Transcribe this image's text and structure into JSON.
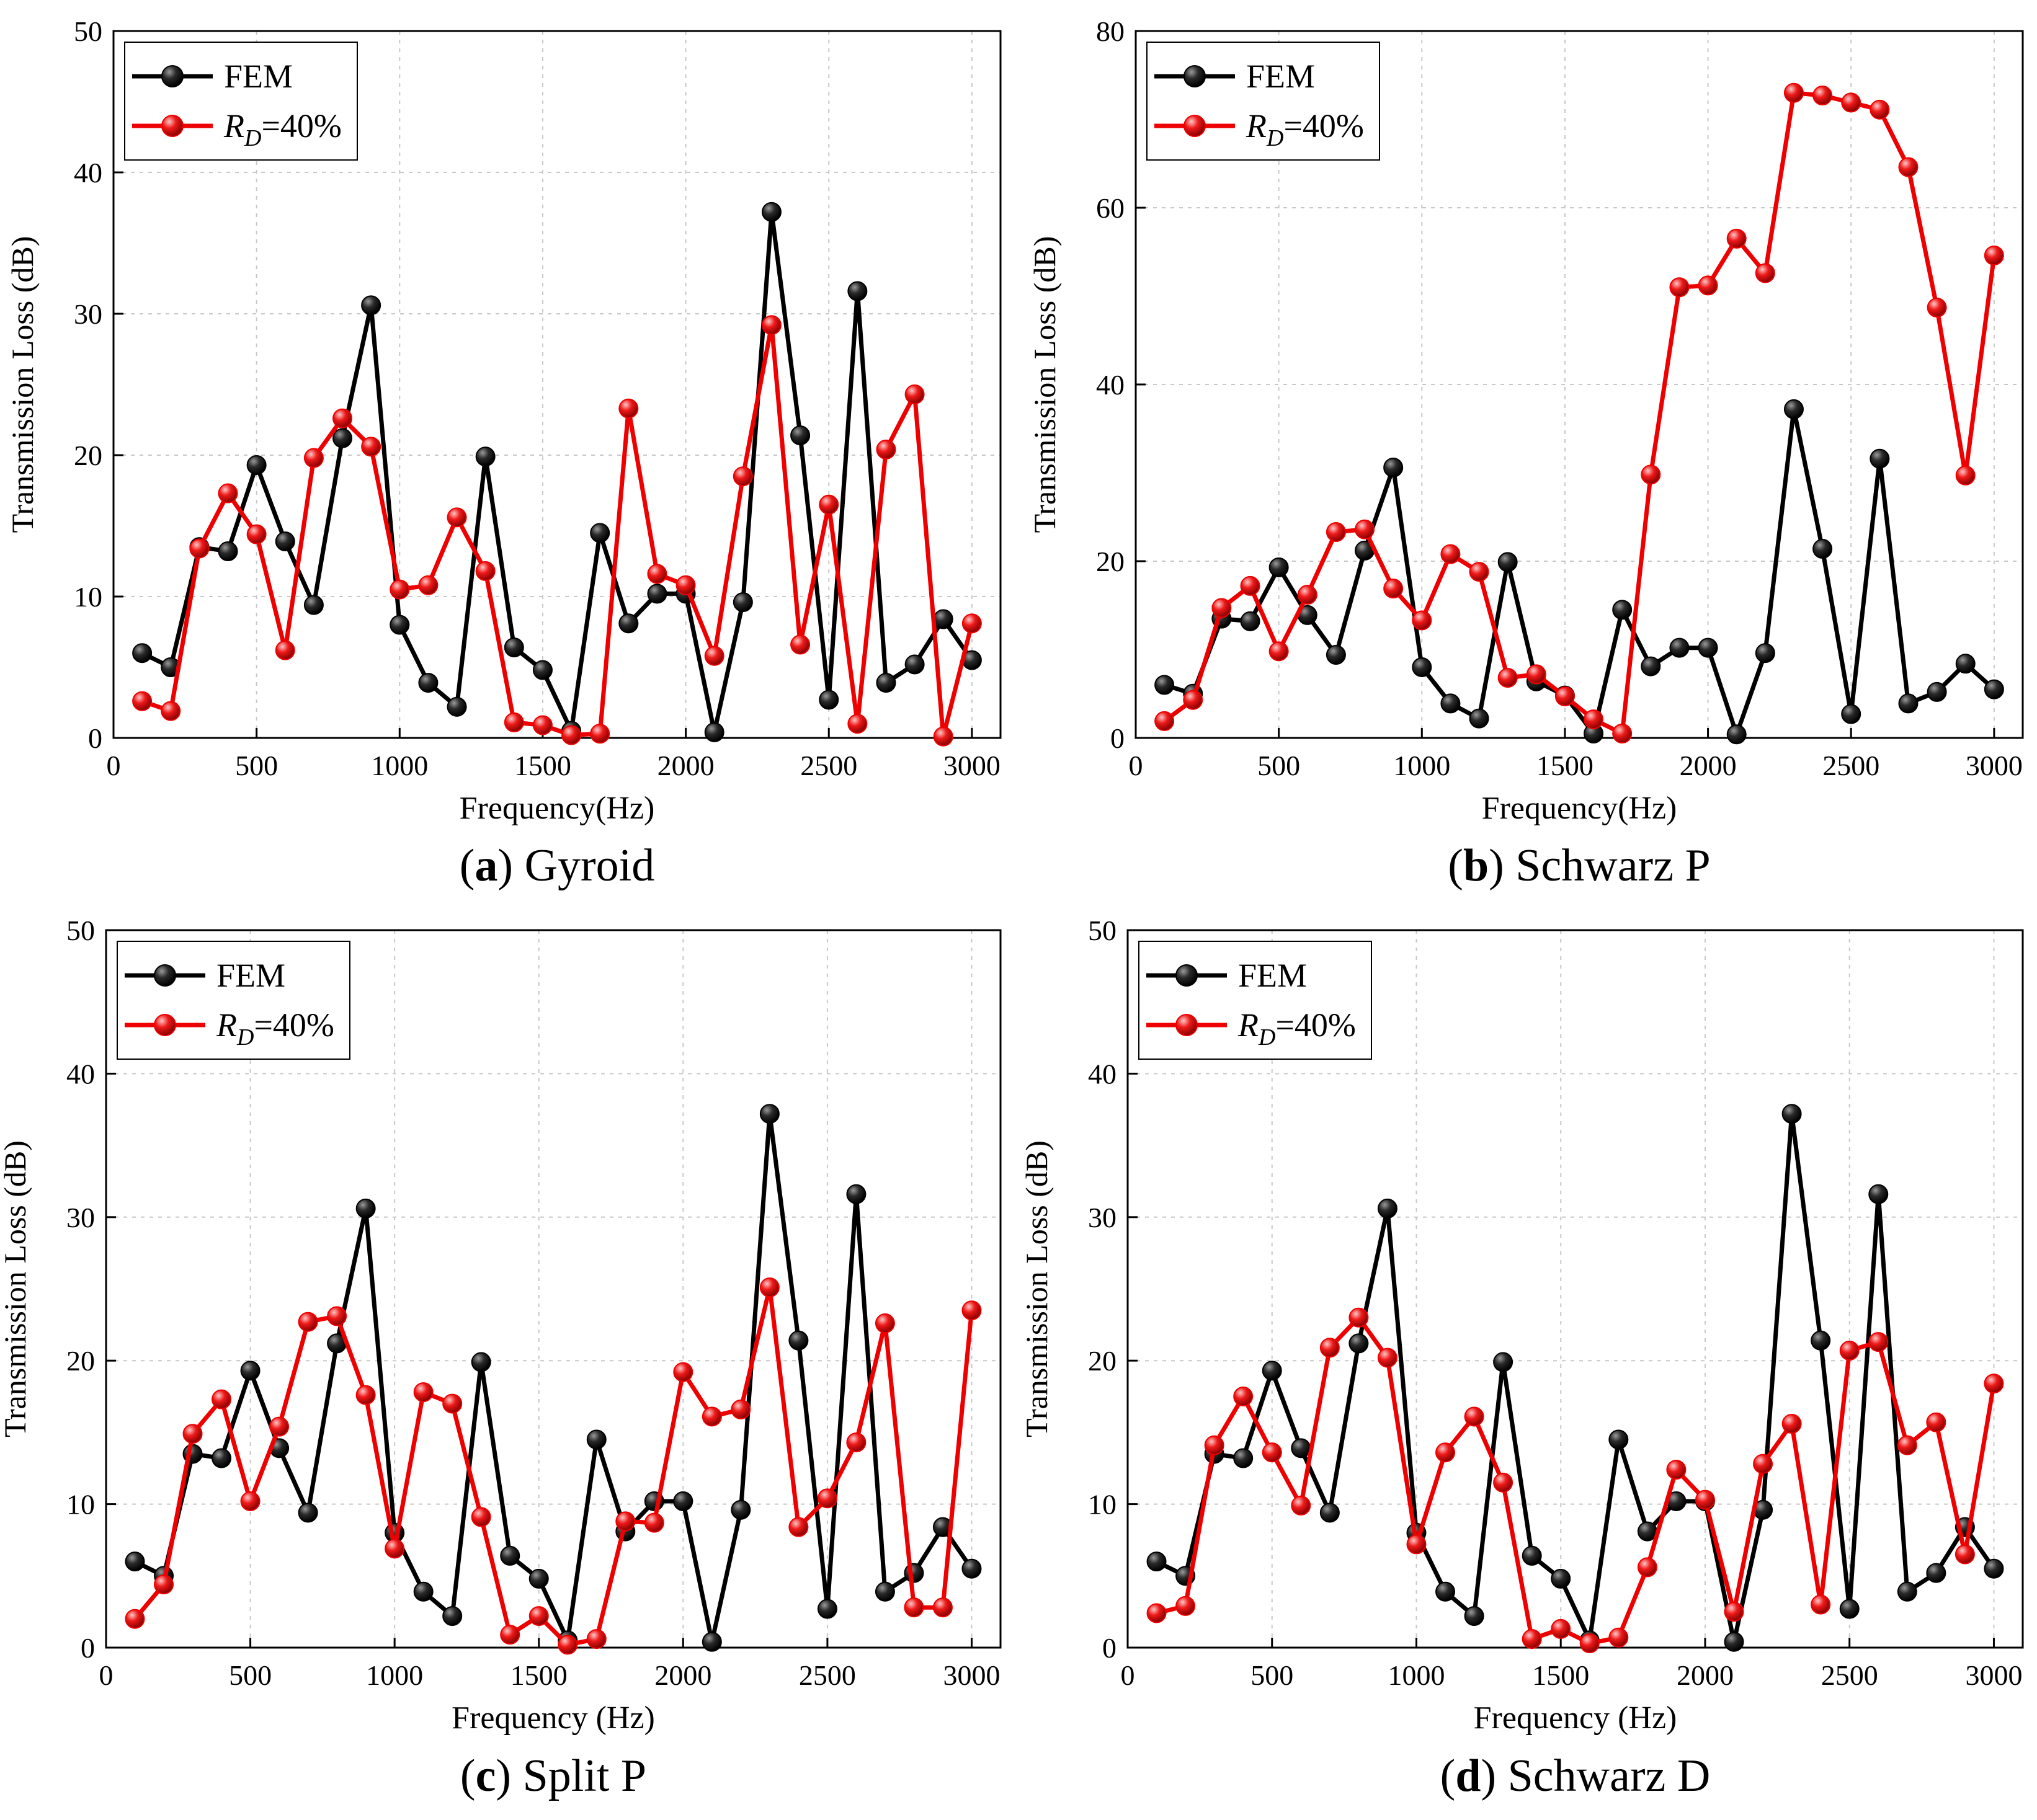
{
  "colors": {
    "fem": "#000000",
    "rd": "#ee0000",
    "grid": "#c8c8c8",
    "axis": "#000000"
  },
  "chart_data": [
    {
      "type": "line",
      "caption": {
        "letter": "a",
        "name": "Gyroid"
      },
      "xlabel": "Frequency(Hz)",
      "ylabel": "Transmission Loss (dB)",
      "xlim": [
        0,
        3100
      ],
      "ylim": [
        0,
        50
      ],
      "xticks": [
        0,
        500,
        1000,
        1500,
        2000,
        2500,
        3000
      ],
      "yticks": [
        0,
        10,
        20,
        30,
        40,
        50
      ],
      "grid": true,
      "legend_position": "top-left",
      "x": [
        100,
        200,
        300,
        400,
        500,
        600,
        700,
        800,
        900,
        1000,
        1100,
        1200,
        1300,
        1400,
        1500,
        1600,
        1700,
        1800,
        1900,
        2000,
        2100,
        2200,
        2300,
        2400,
        2500,
        2600,
        2700,
        2800,
        2900,
        3000
      ],
      "series": [
        {
          "name": "FEM",
          "values": [
            6,
            5,
            13.5,
            13.2,
            19.3,
            13.9,
            9.4,
            21.2,
            30.6,
            8,
            3.9,
            2.2,
            19.9,
            6.4,
            4.8,
            0.5,
            14.5,
            8.1,
            10.2,
            10.2,
            0.4,
            9.6,
            37.2,
            21.4,
            2.7,
            31.6,
            3.9,
            5.2,
            8.4,
            5.5
          ]
        },
        {
          "name_main": "R",
          "name_sub": "D",
          "name_suffix": "=40%",
          "values": [
            2.6,
            1.9,
            13.4,
            17.3,
            14.4,
            6.2,
            19.8,
            22.6,
            20.6,
            10.5,
            10.8,
            15.6,
            11.8,
            1.1,
            0.9,
            0.2,
            0.3,
            23.3,
            11.6,
            10.8,
            5.8,
            18.5,
            29.2,
            6.6,
            16.5,
            1,
            20.4,
            24.3,
            0.1,
            8.1
          ]
        }
      ]
    },
    {
      "type": "line",
      "caption": {
        "letter": "b",
        "name": "Schwarz P"
      },
      "xlabel": "Frequency(Hz)",
      "ylabel": "Transmission Loss (dB)",
      "xlim": [
        0,
        3100
      ],
      "ylim": [
        0,
        80
      ],
      "xticks": [
        0,
        500,
        1000,
        1500,
        2000,
        2500,
        3000
      ],
      "yticks": [
        0,
        20,
        40,
        60,
        80
      ],
      "grid": true,
      "legend_position": "top-left",
      "x": [
        100,
        200,
        300,
        400,
        500,
        600,
        700,
        800,
        900,
        1000,
        1100,
        1200,
        1300,
        1400,
        1500,
        1600,
        1700,
        1800,
        1900,
        2000,
        2100,
        2200,
        2300,
        2400,
        2500,
        2600,
        2700,
        2800,
        2900,
        3000
      ],
      "series": [
        {
          "name": "FEM",
          "values": [
            6,
            5,
            13.5,
            13.2,
            19.3,
            13.9,
            9.4,
            21.2,
            30.6,
            8,
            3.9,
            2.2,
            19.9,
            6.4,
            4.8,
            0.5,
            14.5,
            8.1,
            10.2,
            10.2,
            0.4,
            9.6,
            37.2,
            21.4,
            2.7,
            31.6,
            3.9,
            5.2,
            8.4,
            5.5
          ]
        },
        {
          "name_main": "R",
          "name_sub": "D",
          "name_suffix": "=40%",
          "values": [
            1.9,
            4.3,
            14.7,
            17.2,
            9.8,
            16.2,
            23.3,
            23.6,
            16.9,
            13.3,
            20.8,
            18.8,
            6.8,
            7.2,
            4.7,
            2.1,
            0.5,
            29.8,
            51,
            51.2,
            56.5,
            52.6,
            73,
            72.7,
            71.9,
            71.1,
            64.6,
            48.7,
            29.7,
            54.6
          ]
        }
      ]
    },
    {
      "type": "line",
      "caption": {
        "letter": "c",
        "name": "Split P"
      },
      "xlabel": "Frequency (Hz)",
      "ylabel": "Transmission Loss (dB)",
      "xlim": [
        0,
        3100
      ],
      "ylim": [
        0,
        50
      ],
      "xticks": [
        0,
        500,
        1000,
        1500,
        2000,
        2500,
        3000
      ],
      "yticks": [
        0,
        10,
        20,
        30,
        40,
        50
      ],
      "grid": true,
      "legend_position": "top-left",
      "x": [
        100,
        200,
        300,
        400,
        500,
        600,
        700,
        800,
        900,
        1000,
        1100,
        1200,
        1300,
        1400,
        1500,
        1600,
        1700,
        1800,
        1900,
        2000,
        2100,
        2200,
        2300,
        2400,
        2500,
        2600,
        2700,
        2800,
        2900,
        3000
      ],
      "series": [
        {
          "name": "FEM",
          "values": [
            6,
            5,
            13.5,
            13.2,
            19.3,
            13.9,
            9.4,
            21.2,
            30.6,
            8,
            3.9,
            2.2,
            19.9,
            6.4,
            4.8,
            0.5,
            14.5,
            8.1,
            10.2,
            10.2,
            0.4,
            9.6,
            37.2,
            21.4,
            2.7,
            31.6,
            3.9,
            5.2,
            8.4,
            5.5
          ]
        },
        {
          "name_main": "R",
          "name_sub": "D",
          "name_suffix": "=40%",
          "values": [
            2,
            4.4,
            14.9,
            17.3,
            10.2,
            15.4,
            22.7,
            23.1,
            17.6,
            6.9,
            17.8,
            17,
            9.1,
            0.9,
            2.2,
            0.2,
            0.6,
            8.8,
            8.7,
            19.2,
            16.1,
            16.6,
            25.1,
            8.4,
            10.4,
            14.3,
            22.6,
            2.8,
            2.8,
            23.5
          ]
        }
      ]
    },
    {
      "type": "line",
      "caption": {
        "letter": "d",
        "name": "Schwarz D"
      },
      "xlabel": "Frequency (Hz)",
      "ylabel": "Transmission Loss (dB)",
      "xlim": [
        0,
        3100
      ],
      "ylim": [
        0,
        50
      ],
      "xticks": [
        0,
        500,
        1000,
        1500,
        2000,
        2500,
        3000
      ],
      "yticks": [
        0,
        10,
        20,
        30,
        40,
        50
      ],
      "grid": true,
      "legend_position": "top-left",
      "x": [
        100,
        200,
        300,
        400,
        500,
        600,
        700,
        800,
        900,
        1000,
        1100,
        1200,
        1300,
        1400,
        1500,
        1600,
        1700,
        1800,
        1900,
        2000,
        2100,
        2200,
        2300,
        2400,
        2500,
        2600,
        2700,
        2800,
        2900,
        3000
      ],
      "series": [
        {
          "name": "FEM",
          "values": [
            6,
            5,
            13.5,
            13.2,
            19.3,
            13.9,
            9.4,
            21.2,
            30.6,
            8,
            3.9,
            2.2,
            19.9,
            6.4,
            4.8,
            0.5,
            14.5,
            8.1,
            10.2,
            10.2,
            0.4,
            9.6,
            37.2,
            21.4,
            2.7,
            31.6,
            3.9,
            5.2,
            8.4,
            5.5
          ]
        },
        {
          "name_main": "R",
          "name_sub": "D",
          "name_suffix": "=40%",
          "values": [
            2.4,
            2.9,
            14.1,
            17.5,
            13.6,
            9.9,
            20.9,
            23,
            20.2,
            7.2,
            13.6,
            16.1,
            11.5,
            0.6,
            1.3,
            0.3,
            0.7,
            5.6,
            12.4,
            10.3,
            2.5,
            12.8,
            15.6,
            3,
            20.7,
            21.3,
            14.1,
            15.7,
            6.5,
            18.4
          ]
        }
      ]
    }
  ]
}
